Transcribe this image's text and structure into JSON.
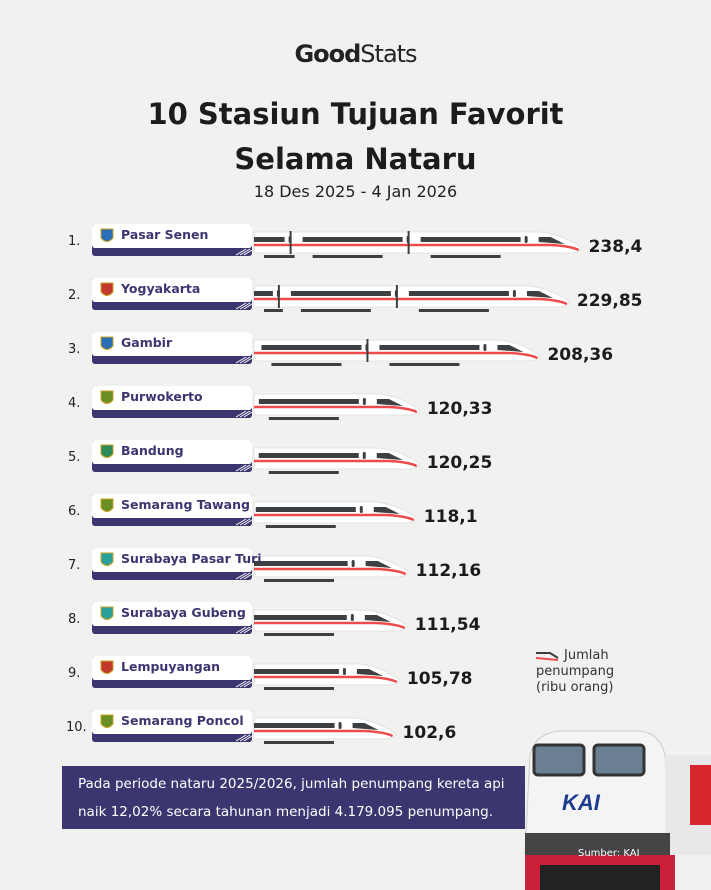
{
  "logo": {
    "part1": "Good",
    "part2": "Stats"
  },
  "title_line1": "10 Stasiun Tujuan Favorit",
  "title_line2": "Selama Nataru",
  "subtitle": "18 Des 2025 - 4 Jan 2026",
  "legend": {
    "line1": "Jumlah",
    "line2": "penumpang",
    "line3": "(ribu orang)"
  },
  "note": "Pada periode nataru 2025/2026, jumlah penumpang kereta api naik 12,02% secara tahunan menjadi 4.179.095 penumpang.",
  "source": "Sumber: KAI",
  "loco_logo": "KAI",
  "colors": {
    "navy": "#3b3670",
    "red": "#ef4b4b",
    "dark": "#3d4042",
    "train_body": "#ffffff"
  },
  "chart_data": {
    "type": "bar",
    "orientation": "horizontal",
    "unit": "ribu orang",
    "categories": [
      "Pasar Senen",
      "Yogyakarta",
      "Gambir",
      "Purwokerto",
      "Bandung",
      "Semarang Tawang",
      "Surabaya Pasar Turi",
      "Surabaya Gubeng",
      "Lempuyangan",
      "Semarang Poncol"
    ],
    "ranks": [
      "1.",
      "2.",
      "3.",
      "4.",
      "5.",
      "6.",
      "7.",
      "8.",
      "9.",
      "10."
    ],
    "values": [
      238.4,
      229.85,
      208.36,
      120.33,
      120.25,
      118.1,
      112.16,
      111.54,
      105.78,
      102.6
    ],
    "labels": [
      "238,4",
      "229,85",
      "208,36",
      "120,33",
      "120,25",
      "118,1",
      "112,16",
      "111,54",
      "105,78",
      "102,6"
    ],
    "emblems": [
      "jakarta",
      "yogyakarta",
      "jakarta",
      "jateng",
      "jabar",
      "jateng",
      "jatim",
      "jatim",
      "yogyakarta",
      "jateng"
    ]
  }
}
